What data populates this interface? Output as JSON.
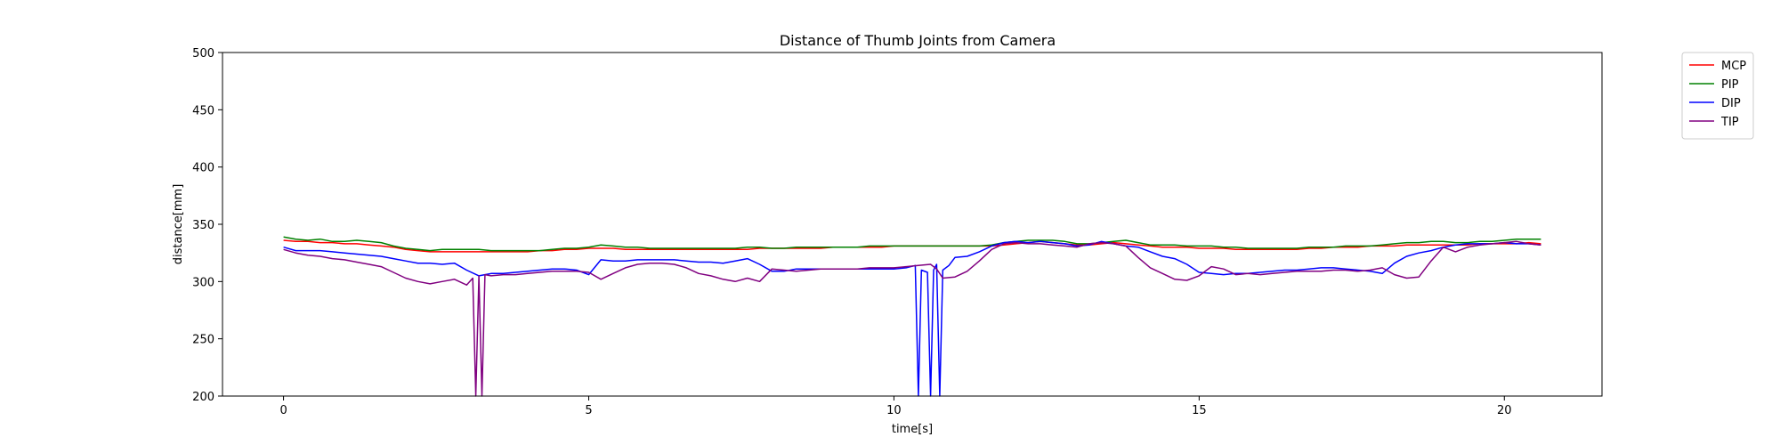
{
  "chart_data": {
    "type": "line",
    "title": "Distance of Thumb Joints from Camera",
    "xlabel": "time[s]",
    "ylabel": "distance[mm]",
    "xlim": [
      -1,
      21.6
    ],
    "ylim": [
      200,
      500
    ],
    "xticks": [
      0,
      5,
      10,
      15,
      20
    ],
    "yticks": [
      200,
      250,
      300,
      350,
      400,
      450,
      500
    ],
    "grid": false,
    "legend": "outside-top-right",
    "series": [
      {
        "name": "MCP",
        "color": "#ff0000",
        "x": [
          0,
          0.2,
          0.4,
          0.6,
          0.8,
          1.0,
          1.2,
          1.4,
          1.6,
          1.8,
          2.0,
          2.2,
          2.4,
          2.6,
          2.8,
          3.0,
          3.2,
          3.4,
          3.6,
          3.8,
          4.0,
          4.2,
          4.4,
          4.6,
          4.8,
          5.0,
          5.2,
          5.4,
          5.6,
          5.8,
          6.0,
          6.2,
          6.4,
          6.6,
          6.8,
          7.0,
          7.2,
          7.4,
          7.6,
          7.8,
          8.0,
          8.2,
          8.4,
          8.6,
          8.8,
          9.0,
          9.2,
          9.4,
          9.6,
          9.8,
          10.0,
          10.2,
          10.4,
          10.6,
          10.8,
          11.0,
          11.2,
          11.4,
          11.6,
          11.8,
          12.0,
          12.2,
          12.4,
          12.6,
          12.8,
          13.0,
          13.2,
          13.4,
          13.6,
          13.8,
          14.0,
          14.2,
          14.4,
          14.6,
          14.8,
          15.0,
          15.2,
          15.4,
          15.6,
          15.8,
          16.0,
          16.2,
          16.4,
          16.6,
          16.8,
          17.0,
          17.2,
          17.4,
          17.6,
          17.8,
          18.0,
          18.2,
          18.4,
          18.6,
          18.8,
          19.0,
          19.2,
          19.4,
          19.6,
          19.8,
          20.0,
          20.2,
          20.4,
          20.6
        ],
        "y": [
          336,
          335,
          335,
          334,
          334,
          333,
          333,
          332,
          331,
          330,
          328,
          327,
          326,
          326,
          326,
          326,
          326,
          326,
          326,
          326,
          326,
          327,
          327,
          328,
          328,
          329,
          329,
          329,
          328,
          328,
          328,
          328,
          328,
          328,
          328,
          328,
          328,
          328,
          328,
          329,
          329,
          329,
          329,
          329,
          329,
          330,
          330,
          330,
          330,
          330,
          331,
          331,
          331,
          331,
          331,
          331,
          331,
          331,
          331,
          332,
          333,
          334,
          335,
          334,
          333,
          332,
          332,
          333,
          334,
          333,
          332,
          331,
          330,
          330,
          330,
          329,
          329,
          329,
          328,
          328,
          328,
          328,
          328,
          328,
          329,
          329,
          330,
          330,
          330,
          331,
          331,
          331,
          332,
          332,
          332,
          332,
          332,
          332,
          333,
          333,
          333,
          333,
          334,
          333
        ]
      },
      {
        "name": "PIP",
        "color": "#008000",
        "x": [
          0,
          0.2,
          0.4,
          0.6,
          0.8,
          1.0,
          1.2,
          1.4,
          1.6,
          1.8,
          2.0,
          2.2,
          2.4,
          2.6,
          2.8,
          3.0,
          3.2,
          3.4,
          3.6,
          3.8,
          4.0,
          4.2,
          4.4,
          4.6,
          4.8,
          5.0,
          5.2,
          5.4,
          5.6,
          5.8,
          6.0,
          6.2,
          6.4,
          6.6,
          6.8,
          7.0,
          7.2,
          7.4,
          7.6,
          7.8,
          8.0,
          8.2,
          8.4,
          8.6,
          8.8,
          9.0,
          9.2,
          9.4,
          9.6,
          9.8,
          10.0,
          10.2,
          10.4,
          10.6,
          10.8,
          11.0,
          11.2,
          11.4,
          11.6,
          11.8,
          12.0,
          12.2,
          12.4,
          12.6,
          12.8,
          13.0,
          13.2,
          13.4,
          13.6,
          13.8,
          14.0,
          14.2,
          14.4,
          14.6,
          14.8,
          15.0,
          15.2,
          15.4,
          15.6,
          15.8,
          16.0,
          16.2,
          16.4,
          16.6,
          16.8,
          17.0,
          17.2,
          17.4,
          17.6,
          17.8,
          18.0,
          18.2,
          18.4,
          18.6,
          18.8,
          19.0,
          19.2,
          19.4,
          19.6,
          19.8,
          20.0,
          20.2,
          20.4,
          20.6
        ],
        "y": [
          339,
          337,
          336,
          337,
          335,
          335,
          336,
          335,
          334,
          331,
          329,
          328,
          327,
          328,
          328,
          328,
          328,
          327,
          327,
          327,
          327,
          327,
          328,
          329,
          329,
          330,
          332,
          331,
          330,
          330,
          329,
          329,
          329,
          329,
          329,
          329,
          329,
          329,
          330,
          330,
          329,
          329,
          330,
          330,
          330,
          330,
          330,
          330,
          331,
          331,
          331,
          331,
          331,
          331,
          331,
          331,
          331,
          331,
          332,
          334,
          335,
          336,
          336,
          336,
          335,
          333,
          333,
          334,
          335,
          336,
          334,
          332,
          332,
          332,
          331,
          331,
          331,
          330,
          330,
          329,
          329,
          329,
          329,
          329,
          330,
          330,
          330,
          331,
          331,
          331,
          332,
          333,
          334,
          334,
          335,
          335,
          334,
          334,
          335,
          335,
          336,
          337,
          337,
          337
        ]
      },
      {
        "name": "DIP",
        "color": "#0000ff",
        "x": [
          0,
          0.2,
          0.4,
          0.6,
          0.8,
          1.0,
          1.2,
          1.4,
          1.6,
          1.8,
          2.0,
          2.2,
          2.4,
          2.6,
          2.8,
          3.0,
          3.2,
          3.3,
          3.4,
          3.6,
          3.8,
          4.0,
          4.2,
          4.4,
          4.6,
          4.8,
          5.0,
          5.2,
          5.4,
          5.6,
          5.8,
          6.0,
          6.2,
          6.4,
          6.6,
          6.8,
          7.0,
          7.2,
          7.4,
          7.6,
          7.8,
          8.0,
          8.2,
          8.4,
          8.6,
          8.8,
          9.0,
          9.2,
          9.4,
          9.6,
          9.8,
          10.0,
          10.2,
          10.35,
          10.4,
          10.45,
          10.55,
          10.6,
          10.65,
          10.7,
          10.75,
          10.8,
          10.9,
          11.0,
          11.2,
          11.4,
          11.6,
          11.8,
          12.0,
          12.2,
          12.4,
          12.6,
          12.8,
          13.0,
          13.2,
          13.4,
          13.6,
          13.8,
          14.0,
          14.2,
          14.4,
          14.6,
          14.8,
          15.0,
          15.2,
          15.4,
          15.6,
          15.8,
          16.0,
          16.2,
          16.4,
          16.6,
          16.8,
          17.0,
          17.2,
          17.4,
          17.6,
          17.8,
          18.0,
          18.2,
          18.4,
          18.6,
          18.8,
          19.0,
          19.2,
          19.4,
          19.6,
          19.8,
          20.0,
          20.2,
          20.4,
          20.6
        ],
        "y": [
          330,
          327,
          327,
          327,
          326,
          325,
          324,
          323,
          322,
          320,
          318,
          316,
          316,
          315,
          316,
          310,
          305,
          306,
          307,
          307,
          308,
          309,
          310,
          311,
          311,
          310,
          306,
          319,
          318,
          318,
          319,
          319,
          319,
          319,
          318,
          317,
          317,
          316,
          318,
          320,
          315,
          309,
          309,
          311,
          311,
          311,
          311,
          311,
          311,
          311,
          311,
          311,
          312,
          314,
          200,
          310,
          308,
          200,
          310,
          315,
          200,
          310,
          314,
          321,
          322,
          326,
          331,
          334,
          335,
          334,
          335,
          334,
          333,
          331,
          332,
          335,
          333,
          331,
          330,
          326,
          322,
          320,
          315,
          308,
          307,
          306,
          307,
          307,
          308,
          309,
          310,
          310,
          311,
          312,
          312,
          311,
          310,
          309,
          307,
          316,
          322,
          325,
          327,
          330,
          332,
          333,
          333,
          333,
          334,
          333,
          333,
          332
        ]
      },
      {
        "name": "TIP",
        "color": "#800080",
        "x": [
          0,
          0.2,
          0.4,
          0.6,
          0.8,
          1.0,
          1.2,
          1.4,
          1.6,
          1.8,
          2.0,
          2.2,
          2.4,
          2.6,
          2.8,
          3.0,
          3.1,
          3.15,
          3.2,
          3.25,
          3.3,
          3.4,
          3.6,
          3.8,
          4.0,
          4.2,
          4.4,
          4.6,
          4.8,
          5.0,
          5.2,
          5.4,
          5.6,
          5.8,
          6.0,
          6.2,
          6.4,
          6.6,
          6.8,
          7.0,
          7.2,
          7.4,
          7.6,
          7.8,
          8.0,
          8.2,
          8.4,
          8.6,
          8.8,
          9.0,
          9.2,
          9.4,
          9.6,
          9.8,
          10.0,
          10.2,
          10.4,
          10.6,
          10.7,
          10.8,
          11.0,
          11.2,
          11.4,
          11.6,
          11.8,
          12.0,
          12.2,
          12.4,
          12.6,
          12.8,
          13.0,
          13.2,
          13.4,
          13.6,
          13.8,
          14.0,
          14.2,
          14.4,
          14.6,
          14.8,
          15.0,
          15.2,
          15.4,
          15.6,
          15.8,
          16.0,
          16.2,
          16.4,
          16.6,
          16.8,
          17.0,
          17.2,
          17.4,
          17.6,
          17.8,
          18.0,
          18.2,
          18.4,
          18.6,
          18.8,
          19.0,
          19.2,
          19.4,
          19.6,
          19.8,
          20.0,
          20.2,
          20.4,
          20.6
        ],
        "y": [
          328,
          325,
          323,
          322,
          320,
          319,
          317,
          315,
          313,
          308,
          303,
          300,
          298,
          300,
          302,
          297,
          303,
          200,
          305,
          200,
          306,
          305,
          306,
          306,
          307,
          308,
          309,
          309,
          309,
          308,
          302,
          307,
          312,
          315,
          316,
          316,
          315,
          312,
          307,
          305,
          302,
          300,
          303,
          300,
          311,
          310,
          309,
          310,
          311,
          311,
          311,
          311,
          312,
          312,
          312,
          313,
          314,
          315,
          311,
          303,
          304,
          309,
          318,
          328,
          333,
          334,
          333,
          333,
          332,
          331,
          330,
          333,
          334,
          333,
          331,
          321,
          312,
          307,
          302,
          301,
          305,
          313,
          311,
          306,
          307,
          306,
          307,
          308,
          309,
          309,
          309,
          310,
          310,
          309,
          310,
          312,
          306,
          303,
          304,
          318,
          330,
          326,
          330,
          332,
          333,
          334,
          335,
          333,
          332
        ]
      }
    ]
  }
}
